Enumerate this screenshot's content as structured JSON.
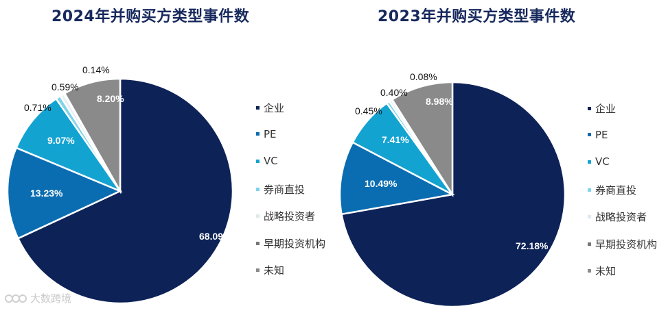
{
  "chart_data": [
    {
      "type": "pie",
      "title": "2024年并购买方类型事件数",
      "slices": [
        {
          "label": "企业",
          "value": 68.09,
          "display": "68.09%",
          "color": "#0d2257"
        },
        {
          "label": "PE",
          "value": 13.23,
          "display": "13.23%",
          "color": "#0b6db1"
        },
        {
          "label": "VC",
          "value": 9.07,
          "display": "9.07%",
          "color": "#13a3d1"
        },
        {
          "label": "券商直投",
          "value": 0.71,
          "display": "0.71%",
          "color": "#7fd3ea"
        },
        {
          "label": "战略投资者",
          "value": 0.59,
          "display": "0.59%",
          "color": "#e8f0f4"
        },
        {
          "label": "早期投资机构",
          "value": 0.14,
          "display": "0.14%",
          "color": "#777777"
        },
        {
          "label": "未知",
          "value": 8.2,
          "display": "8.20%",
          "color": "#8a8a8a"
        }
      ]
    },
    {
      "type": "pie",
      "title": "2023年并购买方类型事件数",
      "slices": [
        {
          "label": "企业",
          "value": 72.18,
          "display": "72.18%",
          "color": "#0d2257"
        },
        {
          "label": "PE",
          "value": 10.49,
          "display": "10.49%",
          "color": "#0b6db1"
        },
        {
          "label": "VC",
          "value": 7.41,
          "display": "7.41%",
          "color": "#13a3d1"
        },
        {
          "label": "券商直投",
          "value": 0.45,
          "display": "0.45%",
          "color": "#7fd3ea"
        },
        {
          "label": "战略投资者",
          "value": 0.4,
          "display": "0.40%",
          "color": "#e8f0f4"
        },
        {
          "label": "早期投资机构",
          "value": 0.08,
          "display": "0.08%",
          "color": "#777777"
        },
        {
          "label": "未知",
          "value": 8.98,
          "display": "8.98%",
          "color": "#8a8a8a"
        }
      ]
    }
  ],
  "legend": [
    "企业",
    "PE",
    "VC",
    "券商直投",
    "战略投资者",
    "早期投资机构",
    "未知"
  ],
  "watermark": "大数跨境"
}
